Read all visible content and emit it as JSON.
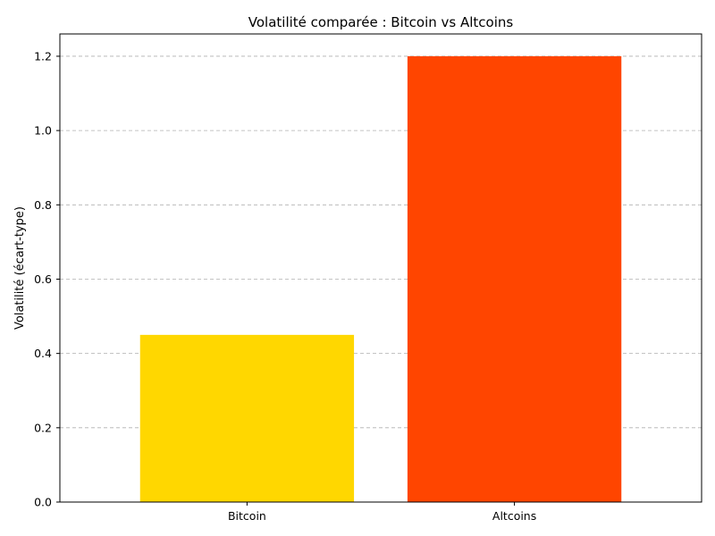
{
  "chart_data": {
    "type": "bar",
    "title": "Volatilité comparée : Bitcoin vs Altcoins",
    "xlabel": "",
    "ylabel": "Volatilité (écart-type)",
    "categories": [
      "Bitcoin",
      "Altcoins"
    ],
    "values": [
      0.45,
      1.2
    ],
    "colors": [
      "#FFD700",
      "#FF4500"
    ],
    "ylim": [
      0,
      1.26
    ],
    "yticks": [
      0.0,
      0.2,
      0.4,
      0.6,
      0.8,
      1.0,
      1.2
    ],
    "ytick_labels": [
      "0.0",
      "0.2",
      "0.4",
      "0.6",
      "0.8",
      "1.0",
      "1.2"
    ],
    "grid": {
      "axis": "y",
      "style": "dashed",
      "color": "#b0b0b0"
    },
    "legend": "none"
  }
}
